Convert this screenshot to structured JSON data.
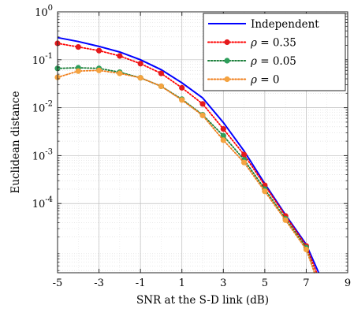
{
  "chart_data": {
    "type": "line",
    "xlabel": "SNR at the S-D link (dB)",
    "ylabel": "Euclidean distance",
    "xlim": [
      -5,
      9
    ],
    "ylim": [
      3.6e-06,
      1
    ],
    "yscale": "log",
    "x_ticks": [
      "-5",
      "-3",
      "-1",
      "1",
      "3",
      "5",
      "7",
      "9"
    ],
    "y_ticks": [
      {
        "base": "10",
        "exp": "0",
        "value": 1
      },
      {
        "base": "10",
        "exp": "-1",
        "value": 0.1
      },
      {
        "base": "10",
        "exp": "-2",
        "value": 0.01
      },
      {
        "base": "10",
        "exp": "-3",
        "value": 0.001
      },
      {
        "base": "10",
        "exp": "-4",
        "value": 0.0001
      }
    ],
    "grid": true,
    "legend_position": "top-right",
    "series": [
      {
        "name": "Independent",
        "legend_html": "Independent",
        "color": "#0000ff",
        "style": "solid",
        "marker": "none",
        "x": [
          -5,
          -4,
          -3,
          -2,
          -1,
          0,
          1,
          2,
          3,
          4,
          5,
          6,
          7,
          7.6
        ],
        "y": [
          0.29,
          0.24,
          0.19,
          0.145,
          0.1,
          0.062,
          0.033,
          0.016,
          0.0049,
          0.00125,
          0.00026,
          5.8e-05,
          1.4e-05,
          3.6e-06
        ]
      },
      {
        "name": "ρ = 0.35",
        "legend_html": "ρ = 0.35",
        "color": "#ff0000",
        "marker_color": "#e31a1c",
        "style": "dotted",
        "marker": "circle",
        "x": [
          -5,
          -4,
          -3,
          -2,
          -1,
          0,
          1,
          2,
          3,
          4,
          5,
          6,
          7,
          7.5
        ],
        "y": [
          0.22,
          0.185,
          0.155,
          0.12,
          0.083,
          0.052,
          0.026,
          0.012,
          0.0036,
          0.00105,
          0.00024,
          5.5e-05,
          1.3e-05,
          3.6e-06
        ]
      },
      {
        "name": "ρ = 0.05",
        "legend_html": "ρ = 0.05",
        "color": "#1b7f3a",
        "marker_color": "#2e9e5b",
        "style": "dotted",
        "marker": "circle",
        "x": [
          -5,
          -4,
          -3,
          -2,
          -1,
          0,
          1,
          2,
          3,
          4,
          5,
          6,
          7,
          7.4
        ],
        "y": [
          0.066,
          0.068,
          0.066,
          0.055,
          0.042,
          0.028,
          0.015,
          0.0071,
          0.0026,
          0.00082,
          0.0002,
          4.8e-05,
          1.2e-05,
          3.6e-06
        ]
      },
      {
        "name": "ρ = 0",
        "legend_html": "ρ = 0",
        "color": "#f07e1b",
        "marker_color": "#f4a340",
        "style": "dotted",
        "marker": "circle",
        "x": [
          -5,
          -4,
          -3,
          -2,
          -1,
          0,
          1,
          2,
          3,
          4,
          5,
          6,
          7,
          7.4
        ],
        "y": [
          0.043,
          0.058,
          0.06,
          0.052,
          0.042,
          0.028,
          0.0145,
          0.0069,
          0.0021,
          0.00072,
          0.00018,
          4.5e-05,
          1.1e-05,
          3.6e-06
        ]
      }
    ]
  }
}
